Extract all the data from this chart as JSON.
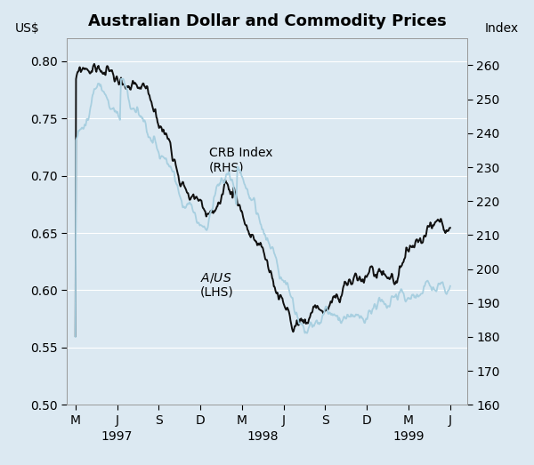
{
  "title": "Australian Dollar and Commodity Prices",
  "ylabel_left": "US$",
  "ylabel_right": "Index",
  "ylim_left": [
    0.5,
    0.82
  ],
  "ylim_right": [
    160,
    268
  ],
  "yticks_left": [
    0.5,
    0.55,
    0.6,
    0.65,
    0.7,
    0.75,
    0.8
  ],
  "yticks_right": [
    160,
    170,
    180,
    190,
    200,
    210,
    220,
    230,
    240,
    250,
    260
  ],
  "xtick_labels": [
    "M",
    "J",
    "S",
    "D",
    "M",
    "J",
    "S",
    "D",
    "M",
    "J"
  ],
  "year_labels": [
    "1997",
    "1998",
    "1999"
  ],
  "aud_color": "#111111",
  "crb_color": "#a8cfe0",
  "background_color": "#dce9f2",
  "label_aud": "$A/US$\n(LHS)",
  "label_crb": "CRB Index\n(RHS)",
  "title_fontsize": 13,
  "axis_label_fontsize": 10,
  "tick_fontsize": 10,
  "annotation_fontsize": 10
}
